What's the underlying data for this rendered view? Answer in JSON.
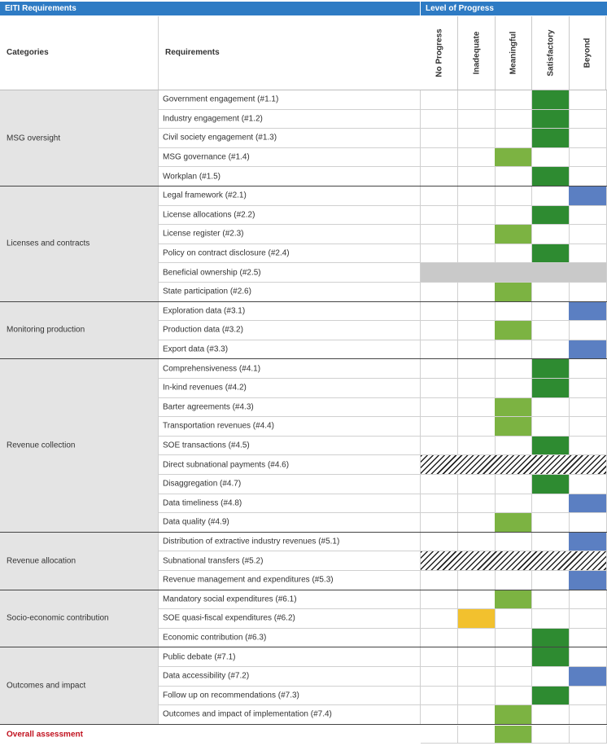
{
  "header": {
    "left_title": "EITI Requirements",
    "right_title": "Level of Progress",
    "categories_label": "Categories",
    "requirements_label": "Requirements"
  },
  "levels": [
    "No Progress",
    "Inadequate",
    "Meaningful",
    "Satisfactory",
    "Beyond"
  ],
  "colors": {
    "header_blue": "#2e7bc4",
    "satisfactory": "#2e8b31",
    "meaningful": "#7cb342",
    "inadequate": "#f2c12e",
    "beyond": "#5b7fc2",
    "not_applicable": "#c9c9c9",
    "overall_label": "#c1121f"
  },
  "categories": [
    {
      "name": "MSG oversight",
      "rows": [
        {
          "label": "Government engagement (#1.1)",
          "status": "Satisfactory"
        },
        {
          "label": "Industry engagement (#1.2)",
          "status": "Satisfactory"
        },
        {
          "label": "Civil society engagement (#1.3)",
          "status": "Satisfactory"
        },
        {
          "label": "MSG governance (#1.4)",
          "status": "Meaningful"
        },
        {
          "label": "Workplan (#1.5)",
          "status": "Satisfactory"
        }
      ]
    },
    {
      "name": "Licenses and contracts",
      "rows": [
        {
          "label": "Legal framework (#2.1)",
          "status": "Beyond"
        },
        {
          "label": "License allocations (#2.2)",
          "status": "Satisfactory"
        },
        {
          "label": "License register (#2.3)",
          "status": "Meaningful"
        },
        {
          "label": "Policy on contract disclosure (#2.4)",
          "status": "Satisfactory"
        },
        {
          "label": "Beneficial ownership (#2.5)",
          "status": "Not assessed"
        },
        {
          "label": "State participation (#2.6)",
          "status": "Meaningful"
        }
      ]
    },
    {
      "name": "Monitoring production",
      "rows": [
        {
          "label": "Exploration data (#3.1)",
          "status": "Beyond"
        },
        {
          "label": "Production data (#3.2)",
          "status": "Meaningful"
        },
        {
          "label": "Export data (#3.3)",
          "status": "Beyond"
        }
      ]
    },
    {
      "name": "Revenue collection",
      "rows": [
        {
          "label": "Comprehensiveness (#4.1)",
          "status": "Satisfactory"
        },
        {
          "label": "In-kind revenues (#4.2)",
          "status": "Satisfactory"
        },
        {
          "label": "Barter agreements (#4.3)",
          "status": "Meaningful"
        },
        {
          "label": "Transportation revenues (#4.4)",
          "status": "Meaningful"
        },
        {
          "label": "SOE transactions (#4.5)",
          "status": "Satisfactory"
        },
        {
          "label": "Direct subnational payments (#4.6)",
          "status": "Not applicable"
        },
        {
          "label": "Disaggregation (#4.7)",
          "status": "Satisfactory"
        },
        {
          "label": "Data timeliness (#4.8)",
          "status": "Beyond"
        },
        {
          "label": "Data quality (#4.9)",
          "status": "Meaningful"
        }
      ]
    },
    {
      "name": "Revenue allocation",
      "rows": [
        {
          "label": "Distribution of extractive industry revenues (#5.1)",
          "status": "Beyond"
        },
        {
          "label": "Subnational transfers (#5.2)",
          "status": "Not applicable"
        },
        {
          "label": "Revenue management and expenditures (#5.3)",
          "status": "Beyond"
        }
      ]
    },
    {
      "name": "Socio-economic contribution",
      "rows": [
        {
          "label": "Mandatory social expenditures (#6.1)",
          "status": "Meaningful"
        },
        {
          "label": "SOE quasi-fiscal expenditures (#6.2)",
          "status": "Inadequate"
        },
        {
          "label": "Economic contribution (#6.3)",
          "status": "Satisfactory"
        }
      ]
    },
    {
      "name": "Outcomes and impact",
      "rows": [
        {
          "label": "Public debate (#7.1)",
          "status": "Satisfactory"
        },
        {
          "label": "Data accessibility (#7.2)",
          "status": "Beyond"
        },
        {
          "label": "Follow up on recommendations (#7.3)",
          "status": "Satisfactory"
        },
        {
          "label": "Outcomes and impact of implementation (#7.4)",
          "status": "Meaningful"
        }
      ]
    }
  ],
  "overall": {
    "label": "Overall assessment",
    "status": "Meaningful"
  }
}
